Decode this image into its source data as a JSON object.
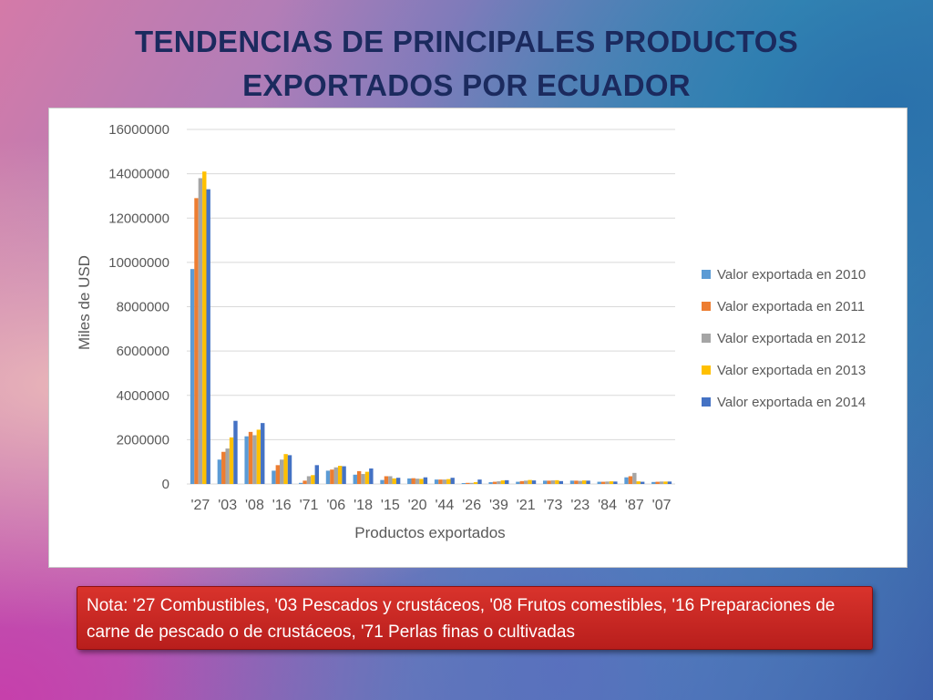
{
  "page": {
    "title_line1": "TENDENCIAS DE PRINCIPALES PRODUCTOS",
    "title_line2": "EXPORTADOS POR ECUADOR",
    "note": "Nota: '27 Combustibles, '03 Pescados y crustáceos, '08 Frutos comestibles, '16 Preparaciones de carne de pescado o de crustáceos, '71 Perlas finas o cultivadas"
  },
  "chart_data": {
    "type": "bar",
    "title": "",
    "xlabel": "Productos exportados",
    "ylabel": "Miles de USD",
    "ylim": [
      0,
      16000000
    ],
    "yticks": [
      0,
      2000000,
      4000000,
      6000000,
      8000000,
      10000000,
      12000000,
      14000000,
      16000000
    ],
    "ytick_labels": [
      "0",
      "2000000",
      "4000000",
      "6000000",
      "8000000",
      "10000000",
      "12000000",
      "14000000",
      "16000000"
    ],
    "grid": true,
    "legend_position": "right",
    "categories": [
      "'27",
      "'03",
      "'08",
      "'16",
      "'71",
      "'06",
      "'18",
      "'15",
      "'20",
      "'44",
      "'26",
      "'39",
      "'21",
      "'73",
      "'23",
      "'84",
      "'87",
      "'07"
    ],
    "series": [
      {
        "name": "Valor exportada en 2010",
        "color": "#5b9bd5",
        "values": [
          9700000,
          1100000,
          2150000,
          600000,
          50000,
          600000,
          420000,
          180000,
          250000,
          200000,
          40000,
          80000,
          100000,
          150000,
          150000,
          100000,
          300000,
          90000
        ]
      },
      {
        "name": "Valor exportada en 2011",
        "color": "#ed7d31",
        "values": [
          12900000,
          1450000,
          2350000,
          850000,
          150000,
          650000,
          580000,
          350000,
          260000,
          200000,
          50000,
          100000,
          130000,
          150000,
          150000,
          100000,
          350000,
          100000
        ]
      },
      {
        "name": "Valor exportada en 2012",
        "color": "#a5a5a5",
        "values": [
          13800000,
          1600000,
          2200000,
          1100000,
          350000,
          750000,
          450000,
          350000,
          240000,
          200000,
          50000,
          120000,
          150000,
          160000,
          140000,
          110000,
          500000,
          110000
        ]
      },
      {
        "name": "Valor exportada en 2013",
        "color": "#ffc000",
        "values": [
          14100000,
          2100000,
          2450000,
          1350000,
          400000,
          820000,
          550000,
          250000,
          230000,
          220000,
          80000,
          160000,
          180000,
          170000,
          160000,
          120000,
          120000,
          110000
        ]
      },
      {
        "name": "Valor exportada en 2014",
        "color": "#4472c4",
        "values": [
          13300000,
          2850000,
          2750000,
          1300000,
          850000,
          800000,
          700000,
          280000,
          300000,
          280000,
          200000,
          170000,
          160000,
          130000,
          150000,
          110000,
          100000,
          110000
        ]
      }
    ]
  }
}
